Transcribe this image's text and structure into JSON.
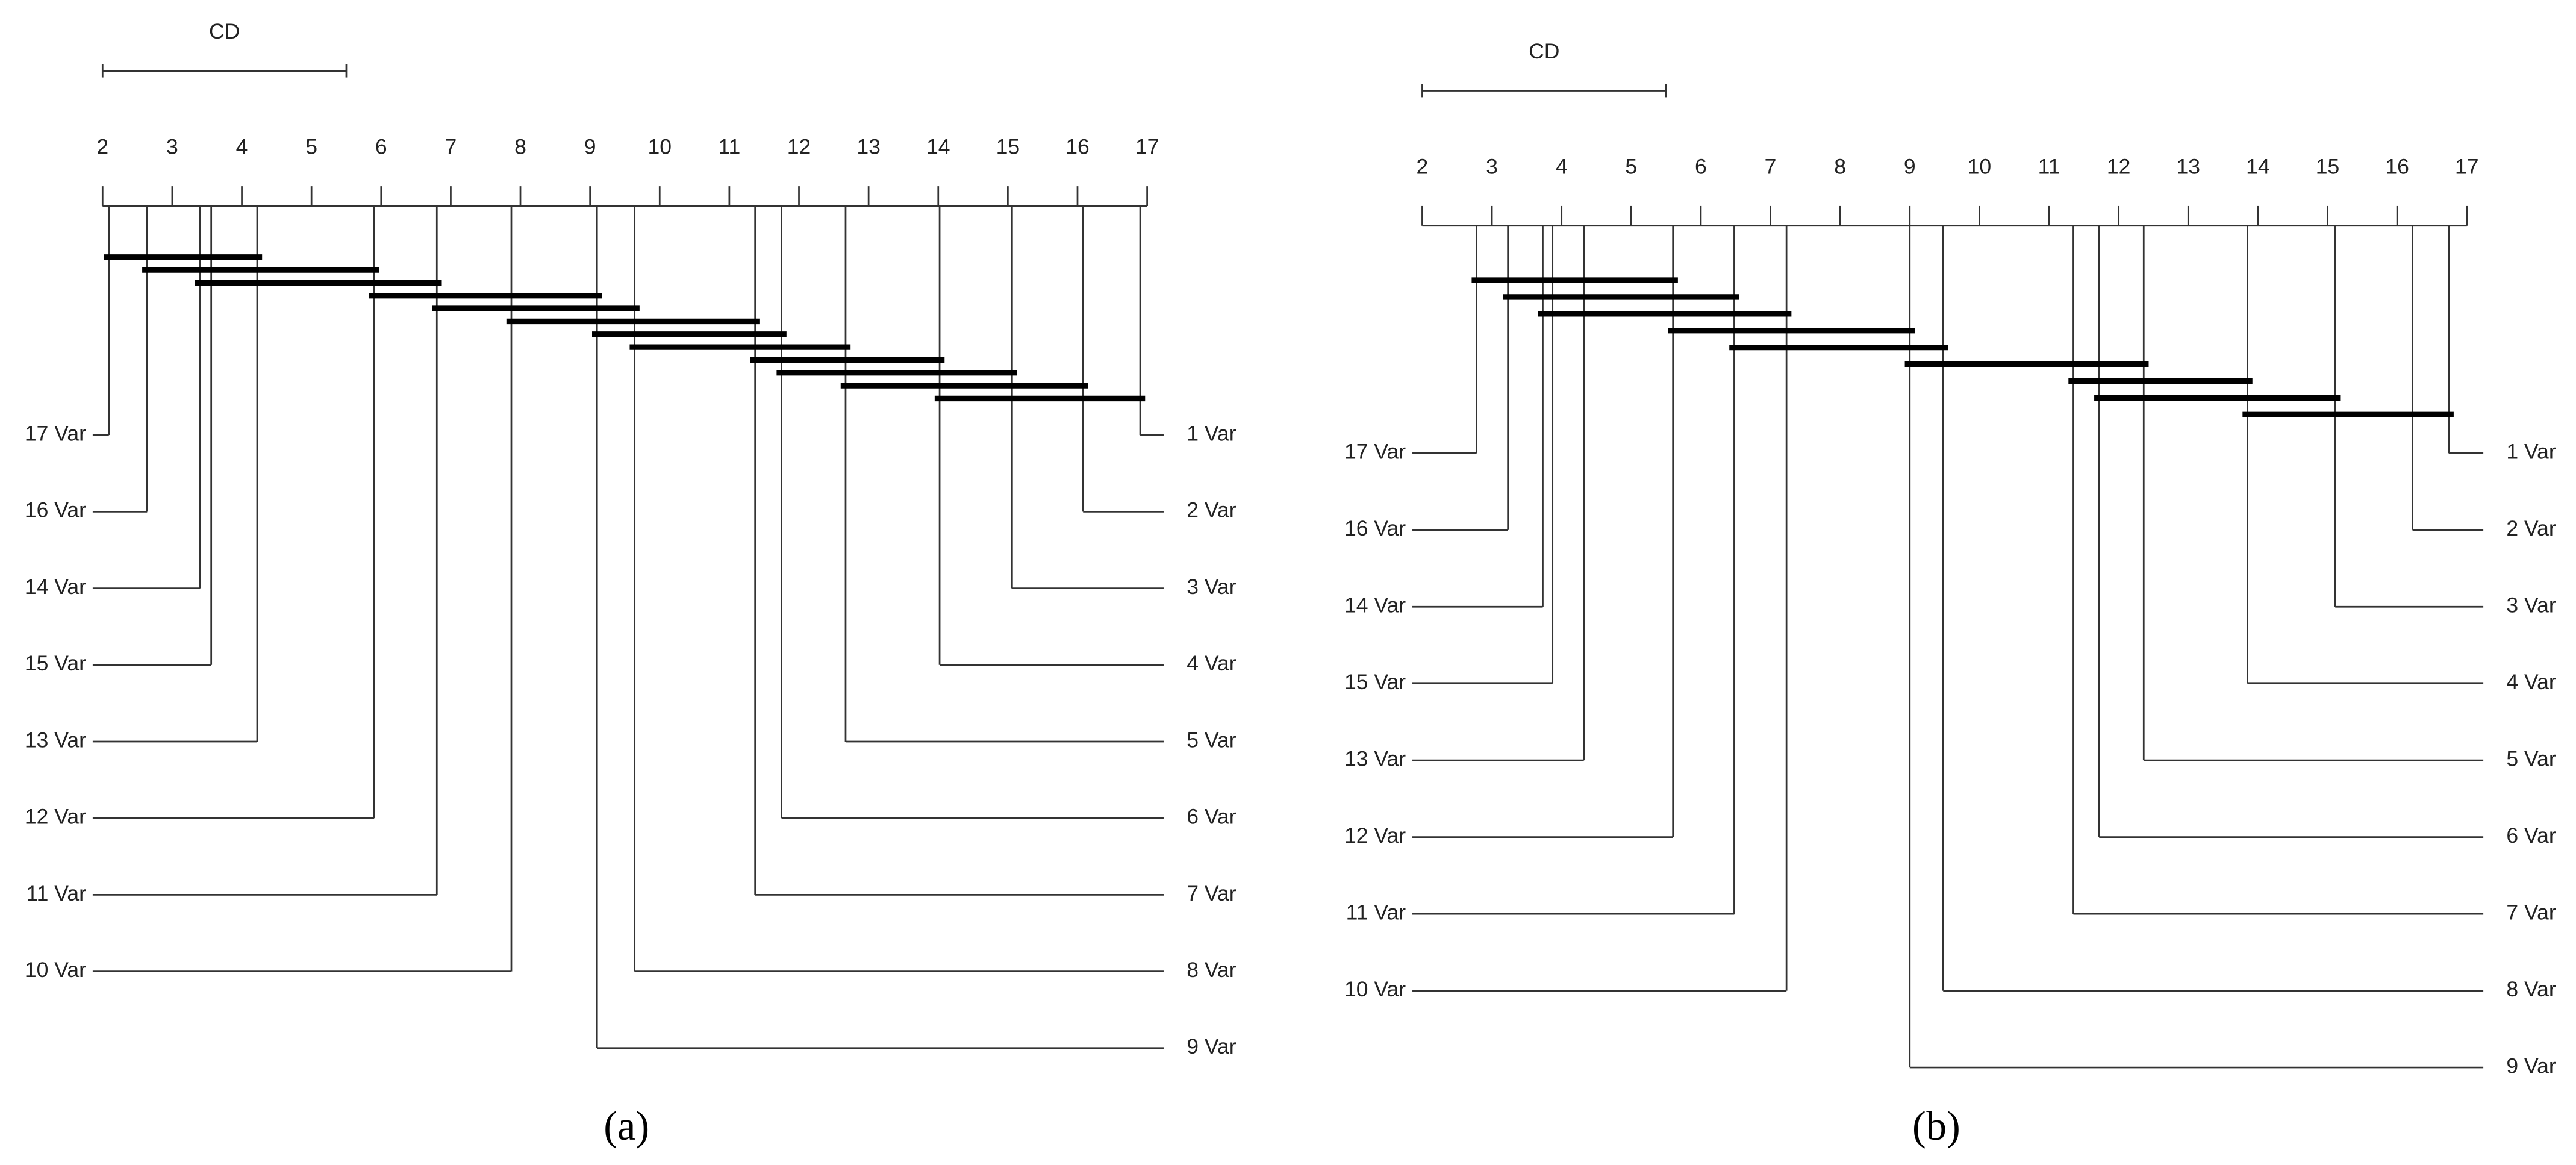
{
  "chart_data": [
    {
      "type": "cd",
      "caption": "(a)",
      "cd_label": "CD",
      "cd": 3.5,
      "xlim": [
        2,
        17
      ],
      "xticks": [
        2,
        3,
        4,
        5,
        6,
        7,
        8,
        9,
        10,
        11,
        12,
        13,
        14,
        15,
        16,
        17
      ],
      "labels": [
        "17 Var",
        "16 Var",
        "14 Var",
        "15 Var",
        "13 Var",
        "12 Var",
        "11 Var",
        "10 Var",
        "9 Var",
        "8 Var",
        "7 Var",
        "6 Var",
        "5 Var",
        "4 Var",
        "3 Var",
        "2 Var",
        "1 Var"
      ],
      "values": [
        2.09,
        2.64,
        3.4,
        3.56,
        4.22,
        5.9,
        6.8,
        7.87,
        9.1,
        9.64,
        11.37,
        11.75,
        12.67,
        14.02,
        15.06,
        16.08,
        16.9
      ],
      "cliques": [
        [
          2.09,
          4.22
        ],
        [
          2.64,
          5.9
        ],
        [
          3.4,
          6.8
        ],
        [
          5.9,
          9.1
        ],
        [
          6.8,
          9.64
        ],
        [
          7.87,
          11.37
        ],
        [
          9.1,
          11.75
        ],
        [
          9.64,
          12.67
        ],
        [
          11.37,
          14.02
        ],
        [
          11.75,
          15.06
        ],
        [
          12.67,
          16.08
        ],
        [
          14.02,
          16.9
        ]
      ]
    },
    {
      "type": "cd",
      "caption": "(b)",
      "cd_label": "CD",
      "cd": 3.5,
      "xlim": [
        2,
        17
      ],
      "xticks": [
        2,
        3,
        4,
        5,
        6,
        7,
        8,
        9,
        10,
        11,
        12,
        13,
        14,
        15,
        16,
        17
      ],
      "labels": [
        "17 Var",
        "16 Var",
        "14 Var",
        "15 Var",
        "13 Var",
        "12 Var",
        "11 Var",
        "10 Var",
        "9 Var",
        "8 Var",
        "7 Var",
        "6 Var",
        "5 Var",
        "4 Var",
        "3 Var",
        "2 Var",
        "1 Var"
      ],
      "values": [
        2.78,
        3.23,
        3.73,
        3.87,
        4.32,
        5.6,
        6.48,
        7.23,
        9.0,
        9.48,
        11.35,
        11.72,
        12.36,
        13.85,
        15.11,
        16.22,
        16.74
      ],
      "cliques": [
        [
          2.78,
          5.6
        ],
        [
          3.23,
          6.48
        ],
        [
          3.73,
          7.23
        ],
        [
          5.6,
          9.0
        ],
        [
          6.48,
          9.48
        ],
        [
          9.0,
          12.36
        ],
        [
          11.35,
          13.85
        ],
        [
          11.72,
          15.11
        ],
        [
          13.85,
          16.74
        ]
      ]
    }
  ]
}
